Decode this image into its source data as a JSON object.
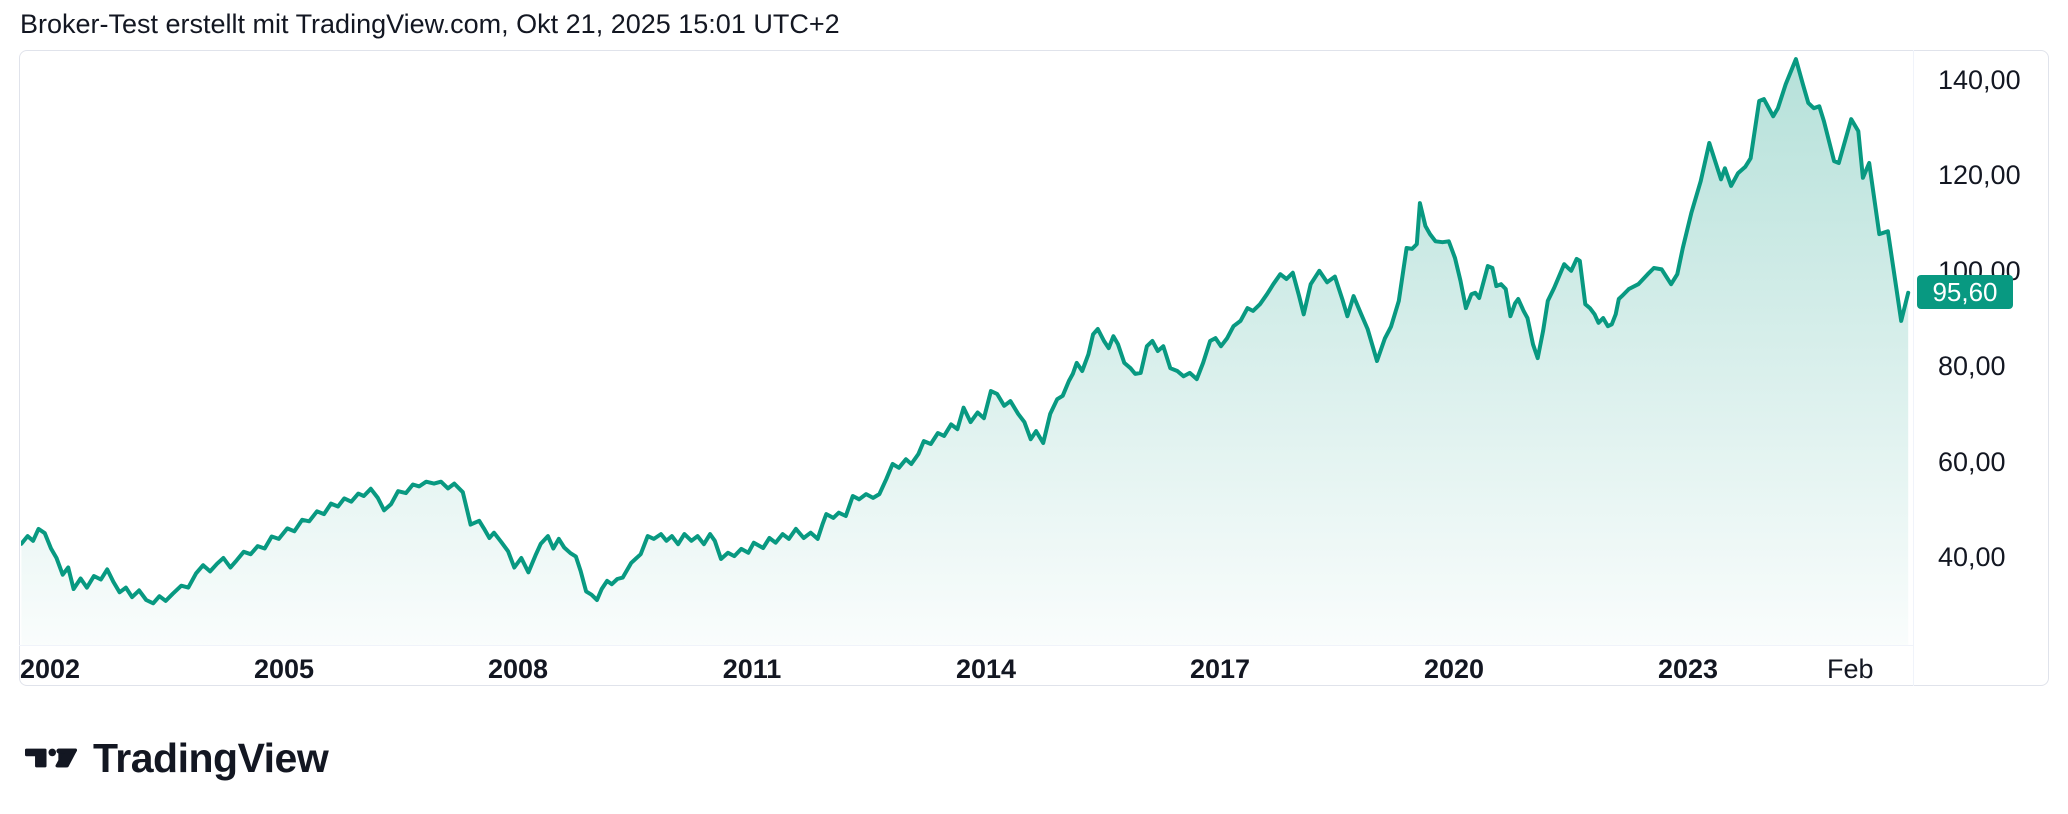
{
  "header": {
    "title": "Broker-Test erstellt mit TradingView.com, Okt 21, 2025 15:01 UTC+2"
  },
  "footer": {
    "logo_text": "TradingView"
  },
  "chart_data": {
    "type": "area",
    "title": "Broker-Test erstellt mit TradingView.com, Okt 21, 2025 15:01 UTC+2",
    "series_name": "Broker-Test",
    "legend_position": "none",
    "grid": false,
    "colors": {
      "line": "#089981",
      "fill_top": "rgba(8,153,129,0.30)",
      "fill_bottom": "rgba(8,153,129,0.02)",
      "badge_bg": "#089981",
      "badge_text": "#ffffff",
      "axis_text": "#131722",
      "frame_border": "#e0e3eb"
    },
    "last_price": 95.6,
    "last_price_label": "95,60",
    "y_axis": {
      "side": "right",
      "range": [
        27,
        146
      ],
      "ticks": [
        {
          "label": "140,00",
          "value": 140
        },
        {
          "label": "120,00",
          "value": 120
        },
        {
          "label": "100,00",
          "value": 100
        },
        {
          "label": "80,00",
          "value": 80
        },
        {
          "label": "60,00",
          "value": 60
        },
        {
          "label": "40,00",
          "value": 40
        }
      ]
    },
    "x_axis": {
      "range_years": [
        2001.6,
        2025.85
      ],
      "ticks": [
        {
          "label": "2002",
          "t": 2002,
          "type": "year"
        },
        {
          "label": "2005",
          "t": 2005,
          "type": "year"
        },
        {
          "label": "2008",
          "t": 2008,
          "type": "year"
        },
        {
          "label": "2011",
          "t": 2011,
          "type": "year"
        },
        {
          "label": "2014",
          "t": 2014,
          "type": "year"
        },
        {
          "label": "2017",
          "t": 2017,
          "type": "year"
        },
        {
          "label": "2020",
          "t": 2020,
          "type": "year"
        },
        {
          "label": "2023",
          "t": 2023,
          "type": "year"
        },
        {
          "label": "Feb",
          "t": 2025.08,
          "type": "month"
        }
      ]
    },
    "points": [
      [
        2001.62,
        43.0
      ],
      [
        2001.7,
        44.6
      ],
      [
        2001.77,
        43.6
      ],
      [
        2001.84,
        46.1
      ],
      [
        2001.92,
        45.2
      ],
      [
        2002.0,
        42.0
      ],
      [
        2002.07,
        40.0
      ],
      [
        2002.15,
        36.5
      ],
      [
        2002.22,
        38.0
      ],
      [
        2002.29,
        33.5
      ],
      [
        2002.38,
        35.7
      ],
      [
        2002.46,
        33.8
      ],
      [
        2002.55,
        36.2
      ],
      [
        2002.64,
        35.5
      ],
      [
        2002.72,
        37.6
      ],
      [
        2002.8,
        35.0
      ],
      [
        2002.88,
        32.8
      ],
      [
        2002.96,
        33.8
      ],
      [
        2003.04,
        31.8
      ],
      [
        2003.13,
        33.2
      ],
      [
        2003.22,
        31.2
      ],
      [
        2003.31,
        30.5
      ],
      [
        2003.39,
        32.0
      ],
      [
        2003.47,
        31.0
      ],
      [
        2003.56,
        32.5
      ],
      [
        2003.67,
        34.2
      ],
      [
        2003.76,
        33.8
      ],
      [
        2003.86,
        36.8
      ],
      [
        2003.95,
        38.5
      ],
      [
        2004.04,
        37.2
      ],
      [
        2004.13,
        38.8
      ],
      [
        2004.21,
        40.0
      ],
      [
        2004.3,
        38.0
      ],
      [
        2004.38,
        39.5
      ],
      [
        2004.47,
        41.3
      ],
      [
        2004.56,
        40.8
      ],
      [
        2004.65,
        42.5
      ],
      [
        2004.74,
        42.0
      ],
      [
        2004.83,
        44.5
      ],
      [
        2004.92,
        44.0
      ],
      [
        2005.03,
        46.2
      ],
      [
        2005.12,
        45.6
      ],
      [
        2005.22,
        48.0
      ],
      [
        2005.31,
        47.7
      ],
      [
        2005.41,
        49.8
      ],
      [
        2005.5,
        49.2
      ],
      [
        2005.59,
        51.4
      ],
      [
        2005.68,
        50.8
      ],
      [
        2005.76,
        52.5
      ],
      [
        2005.85,
        51.8
      ],
      [
        2005.94,
        53.5
      ],
      [
        2006.01,
        53.0
      ],
      [
        2006.1,
        54.5
      ],
      [
        2006.19,
        52.6
      ],
      [
        2006.27,
        50.0
      ],
      [
        2006.36,
        51.3
      ],
      [
        2006.45,
        54.0
      ],
      [
        2006.55,
        53.6
      ],
      [
        2006.64,
        55.4
      ],
      [
        2006.72,
        55.0
      ],
      [
        2006.81,
        56.0
      ],
      [
        2006.91,
        55.6
      ],
      [
        2007.0,
        56.0
      ],
      [
        2007.09,
        54.6
      ],
      [
        2007.17,
        55.6
      ],
      [
        2007.28,
        53.8
      ],
      [
        2007.38,
        47.0
      ],
      [
        2007.49,
        47.8
      ],
      [
        2007.55,
        46.2
      ],
      [
        2007.62,
        44.2
      ],
      [
        2007.68,
        45.3
      ],
      [
        2007.77,
        43.4
      ],
      [
        2007.86,
        41.4
      ],
      [
        2007.94,
        38.0
      ],
      [
        2008.03,
        40.0
      ],
      [
        2008.12,
        37.0
      ],
      [
        2008.21,
        40.5
      ],
      [
        2008.28,
        43.0
      ],
      [
        2008.37,
        44.6
      ],
      [
        2008.44,
        42.0
      ],
      [
        2008.51,
        44.0
      ],
      [
        2008.58,
        42.2
      ],
      [
        2008.66,
        41.0
      ],
      [
        2008.73,
        40.3
      ],
      [
        2008.79,
        37.3
      ],
      [
        2008.86,
        33.0
      ],
      [
        2008.93,
        32.3
      ],
      [
        2009.0,
        31.2
      ],
      [
        2009.06,
        33.5
      ],
      [
        2009.13,
        35.2
      ],
      [
        2009.19,
        34.5
      ],
      [
        2009.26,
        35.6
      ],
      [
        2009.33,
        35.9
      ],
      [
        2009.44,
        39.0
      ],
      [
        2009.56,
        40.8
      ],
      [
        2009.65,
        44.6
      ],
      [
        2009.73,
        44.0
      ],
      [
        2009.82,
        45.0
      ],
      [
        2009.89,
        43.6
      ],
      [
        2009.96,
        44.6
      ],
      [
        2010.04,
        42.9
      ],
      [
        2010.12,
        45.0
      ],
      [
        2010.21,
        43.6
      ],
      [
        2010.29,
        44.6
      ],
      [
        2010.37,
        42.9
      ],
      [
        2010.45,
        45.0
      ],
      [
        2010.51,
        43.6
      ],
      [
        2010.59,
        39.8
      ],
      [
        2010.68,
        41.1
      ],
      [
        2010.76,
        40.4
      ],
      [
        2010.85,
        41.9
      ],
      [
        2010.94,
        41.1
      ],
      [
        2011.01,
        43.2
      ],
      [
        2011.13,
        42.1
      ],
      [
        2011.21,
        44.2
      ],
      [
        2011.29,
        43.2
      ],
      [
        2011.38,
        45.0
      ],
      [
        2011.46,
        44.0
      ],
      [
        2011.55,
        46.1
      ],
      [
        2011.65,
        44.2
      ],
      [
        2011.74,
        45.3
      ],
      [
        2011.83,
        44.0
      ],
      [
        2011.89,
        47.0
      ],
      [
        2011.94,
        49.2
      ],
      [
        2012.03,
        48.4
      ],
      [
        2012.1,
        49.5
      ],
      [
        2012.19,
        48.8
      ],
      [
        2012.28,
        53.0
      ],
      [
        2012.36,
        52.3
      ],
      [
        2012.45,
        53.4
      ],
      [
        2012.54,
        52.6
      ],
      [
        2012.62,
        53.4
      ],
      [
        2012.71,
        56.6
      ],
      [
        2012.79,
        59.7
      ],
      [
        2012.87,
        58.9
      ],
      [
        2012.96,
        60.7
      ],
      [
        2013.03,
        59.7
      ],
      [
        2013.12,
        61.8
      ],
      [
        2013.19,
        64.5
      ],
      [
        2013.28,
        63.9
      ],
      [
        2013.37,
        66.2
      ],
      [
        2013.45,
        65.6
      ],
      [
        2013.54,
        68.0
      ],
      [
        2013.62,
        67.0
      ],
      [
        2013.7,
        71.5
      ],
      [
        2013.79,
        68.5
      ],
      [
        2013.88,
        70.5
      ],
      [
        2013.96,
        69.3
      ],
      [
        2014.05,
        75.0
      ],
      [
        2014.13,
        74.4
      ],
      [
        2014.22,
        71.9
      ],
      [
        2014.3,
        72.9
      ],
      [
        2014.4,
        70.2
      ],
      [
        2014.48,
        68.5
      ],
      [
        2014.56,
        64.9
      ],
      [
        2014.63,
        66.6
      ],
      [
        2014.72,
        64.1
      ],
      [
        2014.81,
        70.2
      ],
      [
        2014.9,
        73.3
      ],
      [
        2014.97,
        74.0
      ],
      [
        2015.05,
        77.1
      ],
      [
        2015.1,
        78.6
      ],
      [
        2015.15,
        80.9
      ],
      [
        2015.22,
        79.2
      ],
      [
        2015.3,
        82.7
      ],
      [
        2015.36,
        86.9
      ],
      [
        2015.42,
        88.0
      ],
      [
        2015.5,
        85.5
      ],
      [
        2015.56,
        84.0
      ],
      [
        2015.62,
        86.5
      ],
      [
        2015.68,
        84.8
      ],
      [
        2015.76,
        80.9
      ],
      [
        2015.84,
        79.8
      ],
      [
        2015.9,
        78.6
      ],
      [
        2015.97,
        78.8
      ],
      [
        2016.05,
        84.4
      ],
      [
        2016.12,
        85.5
      ],
      [
        2016.19,
        83.4
      ],
      [
        2016.26,
        84.4
      ],
      [
        2016.35,
        79.8
      ],
      [
        2016.44,
        79.2
      ],
      [
        2016.52,
        78.1
      ],
      [
        2016.6,
        78.8
      ],
      [
        2016.69,
        77.5
      ],
      [
        2016.77,
        80.9
      ],
      [
        2016.86,
        85.5
      ],
      [
        2016.93,
        86.1
      ],
      [
        2017.0,
        84.4
      ],
      [
        2017.08,
        86.1
      ],
      [
        2017.16,
        88.6
      ],
      [
        2017.25,
        89.7
      ],
      [
        2017.34,
        92.4
      ],
      [
        2017.41,
        91.8
      ],
      [
        2017.5,
        93.2
      ],
      [
        2017.59,
        95.3
      ],
      [
        2017.67,
        97.4
      ],
      [
        2017.76,
        99.5
      ],
      [
        2017.84,
        98.5
      ],
      [
        2017.92,
        99.8
      ],
      [
        2018.0,
        95.0
      ],
      [
        2018.06,
        91.1
      ],
      [
        2018.15,
        97.4
      ],
      [
        2018.26,
        100.2
      ],
      [
        2018.36,
        97.8
      ],
      [
        2018.46,
        99.0
      ],
      [
        2018.56,
        94.0
      ],
      [
        2018.62,
        90.7
      ],
      [
        2018.7,
        94.9
      ],
      [
        2018.8,
        91.0
      ],
      [
        2018.88,
        88.0
      ],
      [
        2019.0,
        81.3
      ],
      [
        2019.1,
        86.0
      ],
      [
        2019.18,
        88.5
      ],
      [
        2019.28,
        93.9
      ],
      [
        2019.38,
        105.0
      ],
      [
        2019.45,
        104.8
      ],
      [
        2019.51,
        105.8
      ],
      [
        2019.55,
        114.4
      ],
      [
        2019.62,
        109.6
      ],
      [
        2019.68,
        107.9
      ],
      [
        2019.75,
        106.4
      ],
      [
        2019.84,
        106.2
      ],
      [
        2019.92,
        106.4
      ],
      [
        2020.0,
        102.9
      ],
      [
        2020.07,
        98.1
      ],
      [
        2020.14,
        92.4
      ],
      [
        2020.21,
        95.3
      ],
      [
        2020.26,
        95.6
      ],
      [
        2020.31,
        94.5
      ],
      [
        2020.42,
        101.2
      ],
      [
        2020.48,
        100.8
      ],
      [
        2020.53,
        97.0
      ],
      [
        2020.59,
        97.4
      ],
      [
        2020.65,
        96.4
      ],
      [
        2020.71,
        90.7
      ],
      [
        2020.77,
        93.4
      ],
      [
        2020.81,
        94.3
      ],
      [
        2020.88,
        91.8
      ],
      [
        2020.93,
        90.3
      ],
      [
        2021.0,
        84.8
      ],
      [
        2021.06,
        81.9
      ],
      [
        2021.13,
        87.6
      ],
      [
        2021.19,
        93.9
      ],
      [
        2021.27,
        96.6
      ],
      [
        2021.4,
        101.6
      ],
      [
        2021.45,
        100.8
      ],
      [
        2021.49,
        100.2
      ],
      [
        2021.56,
        102.7
      ],
      [
        2021.6,
        102.3
      ],
      [
        2021.67,
        93.2
      ],
      [
        2021.73,
        92.4
      ],
      [
        2021.79,
        91.1
      ],
      [
        2021.84,
        89.3
      ],
      [
        2021.9,
        90.3
      ],
      [
        2021.96,
        88.6
      ],
      [
        2022.01,
        89.0
      ],
      [
        2022.06,
        91.1
      ],
      [
        2022.1,
        94.3
      ],
      [
        2022.14,
        94.9
      ],
      [
        2022.23,
        96.4
      ],
      [
        2022.35,
        97.4
      ],
      [
        2022.47,
        99.5
      ],
      [
        2022.55,
        100.8
      ],
      [
        2022.65,
        100.5
      ],
      [
        2022.77,
        97.4
      ],
      [
        2022.85,
        99.5
      ],
      [
        2022.92,
        105.0
      ],
      [
        2023.03,
        112.3
      ],
      [
        2023.15,
        119.0
      ],
      [
        2023.26,
        127.0
      ],
      [
        2023.41,
        119.4
      ],
      [
        2023.46,
        121.7
      ],
      [
        2023.54,
        118.0
      ],
      [
        2023.63,
        120.7
      ],
      [
        2023.72,
        122.0
      ],
      [
        2023.79,
        123.8
      ],
      [
        2023.9,
        135.8
      ],
      [
        2023.96,
        136.2
      ],
      [
        2024.08,
        132.6
      ],
      [
        2024.14,
        134.3
      ],
      [
        2024.24,
        139.3
      ],
      [
        2024.37,
        144.6
      ],
      [
        2024.46,
        139.3
      ],
      [
        2024.53,
        135.4
      ],
      [
        2024.6,
        134.3
      ],
      [
        2024.67,
        134.7
      ],
      [
        2024.73,
        131.6
      ],
      [
        2024.86,
        123.2
      ],
      [
        2024.92,
        122.8
      ],
      [
        2025.08,
        132.0
      ],
      [
        2025.17,
        129.5
      ],
      [
        2025.23,
        119.7
      ],
      [
        2025.31,
        122.8
      ],
      [
        2025.44,
        107.9
      ],
      [
        2025.55,
        108.5
      ],
      [
        2025.72,
        89.7
      ],
      [
        2025.81,
        95.6
      ]
    ]
  }
}
